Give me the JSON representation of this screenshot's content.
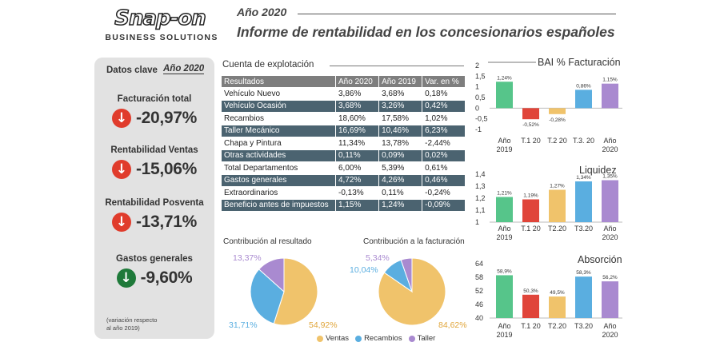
{
  "header": {
    "logo_text": "Snap-on",
    "logo_sub": "BUSINESS SOLUTIONS",
    "year": "Año 2020",
    "title": "Informe de rentabilidad en los concesionarios españoles"
  },
  "kpis": {
    "heading": "Datos clave",
    "year": "Año 2020",
    "items": [
      {
        "label": "Facturación total",
        "value": "-20,97%",
        "direction": "down",
        "color": "#e03c2c"
      },
      {
        "label": "Rentabilidad Ventas",
        "value": "-15,06%",
        "direction": "down",
        "color": "#e03c2c"
      },
      {
        "label": "Rentabilidad Posventa",
        "value": "-13,71%",
        "direction": "down",
        "color": "#e03c2c"
      },
      {
        "label": "Gastos generales",
        "value": "-9,60%",
        "direction": "down",
        "color": "#1f7a3a"
      }
    ],
    "note_1": "(variación respecto",
    "note_2": "al año 2019)"
  },
  "table": {
    "title": "Cuenta de explotación",
    "headers": [
      "Resultados",
      "Año 2020",
      "Año 2019",
      "Var. en %"
    ],
    "rows": [
      [
        "Vehículo Nuevo",
        "3,86%",
        "3,68%",
        "0,18%"
      ],
      [
        "Vehículo Ocasión",
        "3,68%",
        "3,26%",
        "0,42%"
      ],
      [
        "Recambios",
        "18,60%",
        "17,58%",
        "1,02%"
      ],
      [
        "Taller Mecánico",
        "16,69%",
        "10,46%",
        "6,23%"
      ],
      [
        "Chapa y Pintura",
        "11,34%",
        "13,78%",
        "-2,44%"
      ],
      [
        "Otras actividades",
        "0,11%",
        "0,09%",
        "0,02%"
      ],
      [
        "Total Departamentos",
        "6,00%",
        "5,39%",
        "0,61%"
      ],
      [
        "Gastos generales",
        "4,72%",
        "4,26%",
        "0,46%"
      ],
      [
        "Extraordinarios",
        "-0,13%",
        "0,11%",
        "-0,24%"
      ],
      [
        "Beneficio antes de impuestos",
        "1,15%",
        "1,24%",
        "-0,09%"
      ]
    ]
  },
  "chart_data": [
    {
      "type": "pie",
      "title": "Contribución al resultado",
      "categories": [
        "Ventas",
        "Recambios",
        "Taller"
      ],
      "values": [
        54.92,
        31.71,
        13.37
      ],
      "labels": [
        "54,92%",
        "31,71%",
        "13,37%"
      ],
      "colors": [
        "#f0c36b",
        "#5aaee0",
        "#a98ad0"
      ]
    },
    {
      "type": "pie",
      "title": "Contribución a la facturación",
      "categories": [
        "Ventas",
        "Recambios",
        "Taller"
      ],
      "values": [
        84.62,
        10.04,
        5.34
      ],
      "labels": [
        "84,62%",
        "10,04%",
        "5,34%"
      ],
      "colors": [
        "#f0c36b",
        "#5aaee0",
        "#a98ad0"
      ]
    },
    {
      "type": "bar",
      "title": "BAI % Facturación",
      "categories": [
        "Año 2019",
        "T.1 20",
        "T.2 20",
        "T.3. 20",
        "Año 2020"
      ],
      "values": [
        1.24,
        -0.52,
        -0.28,
        0.86,
        1.15
      ],
      "labels": [
        "1,24%",
        "-0,52%",
        "-0,28%",
        "0,86%",
        "1,15%"
      ],
      "colors": [
        "#56c58a",
        "#e0453a",
        "#f0c36b",
        "#5aaee0",
        "#a98ad0"
      ],
      "ylim": [
        -1,
        2
      ],
      "yticks": [
        "2",
        "1,5",
        "1",
        "0,5",
        "0",
        "-0,5",
        "-1"
      ],
      "ytick_values": [
        2,
        1.5,
        1,
        0.5,
        0,
        -0.5,
        -1
      ]
    },
    {
      "type": "bar",
      "title": "Liquidez",
      "categories": [
        "Año 2019",
        "T.1 20",
        "T2.20",
        "T3.20",
        "Año 2020"
      ],
      "values": [
        1.21,
        1.19,
        1.27,
        1.34,
        1.35
      ],
      "labels": [
        "1,21%",
        "1,19%",
        "1,27%",
        "1,34%",
        "1,35%"
      ],
      "colors": [
        "#56c58a",
        "#e0453a",
        "#f0c36b",
        "#5aaee0",
        "#a98ad0"
      ],
      "ylim": [
        1,
        1.4
      ],
      "yticks": [
        "1,4",
        "1,3",
        "1,2",
        "1,1",
        "1"
      ],
      "ytick_values": [
        1.4,
        1.3,
        1.2,
        1.1,
        1
      ]
    },
    {
      "type": "bar",
      "title": "Absorción",
      "categories": [
        "Año 2019",
        "T.1 20",
        "T2.20",
        "T3.20",
        "Año 2020"
      ],
      "values": [
        58.9,
        50.3,
        49.5,
        58.3,
        56.2
      ],
      "labels": [
        "58,9%",
        "50,3%",
        "49,5%",
        "58,3%",
        "56,2%"
      ],
      "colors": [
        "#56c58a",
        "#e0453a",
        "#f0c36b",
        "#5aaee0",
        "#a98ad0"
      ],
      "ylim": [
        40,
        64
      ],
      "yticks": [
        "64",
        "58",
        "52",
        "46",
        "40"
      ],
      "ytick_values": [
        64,
        58,
        52,
        46,
        40
      ]
    }
  ],
  "legend": [
    "Ventas",
    "Recambios",
    "Taller"
  ]
}
